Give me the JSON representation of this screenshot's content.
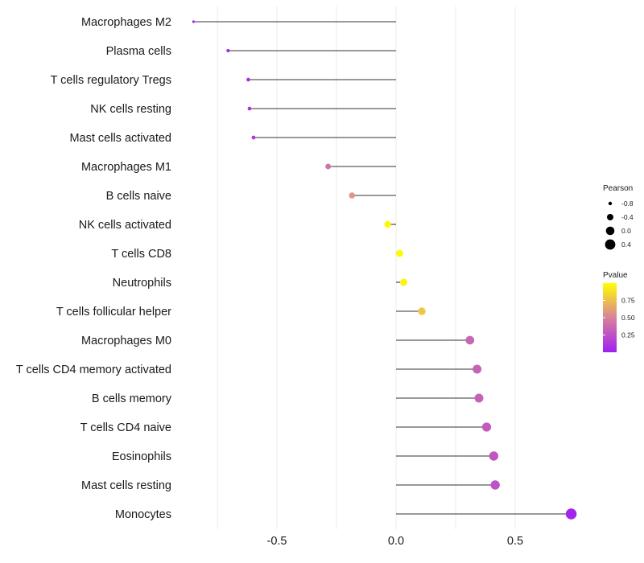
{
  "chart_data": {
    "type": "lollipop",
    "title": "",
    "xlabel": "",
    "ylabel": "",
    "xlim": [
      -0.85,
      0.75
    ],
    "x_ticks": [
      -0.5,
      0.0,
      0.5
    ],
    "x_tick_labels": [
      "-0.5",
      "0.0",
      "0.5"
    ],
    "x_minor_gridlines": [
      -0.75,
      -0.25,
      0.25
    ],
    "categories": [
      "Macrophages M2",
      "Plasma cells",
      "T cells regulatory  Tregs",
      "NK cells resting",
      "Mast cells activated",
      "Macrophages M1",
      "B cells naive",
      "NK cells activated",
      "T cells CD8",
      "Neutrophils",
      "T cells follicular helper",
      "Macrophages M0",
      "T cells CD4 memory activated",
      "B cells memory",
      "T cells CD4 naive",
      "Eosinophils",
      "Mast cells resting",
      "Monocytes"
    ],
    "values": [
      -0.85,
      -0.705,
      -0.62,
      -0.615,
      -0.598,
      -0.285,
      -0.185,
      -0.035,
      0.015,
      0.032,
      0.108,
      0.31,
      0.34,
      0.348,
      0.38,
      0.41,
      0.416,
      0.735
    ],
    "pvalues": [
      0.02,
      0.05,
      0.08,
      0.1,
      0.12,
      0.42,
      0.58,
      0.97,
      0.98,
      0.95,
      0.78,
      0.36,
      0.34,
      0.33,
      0.3,
      0.28,
      0.26,
      0.02
    ],
    "legend_size": {
      "title": "Pearson",
      "labels": [
        "-0.8",
        "-0.4",
        "0.0",
        "0.4"
      ],
      "values": [
        -0.8,
        -0.4,
        0.0,
        0.4
      ]
    },
    "legend_color": {
      "title": "Pvalue",
      "labels": [
        "0.75",
        "0.50",
        "0.25"
      ],
      "values": [
        0.75,
        0.5,
        0.25
      ],
      "range": [
        0.0,
        1.0
      ],
      "low_color": "#a020f0",
      "mid_color": "#d8829b",
      "high_color": "#ffff00"
    },
    "colors": {
      "stem": "#333333",
      "grid": "#ebebeb"
    }
  }
}
